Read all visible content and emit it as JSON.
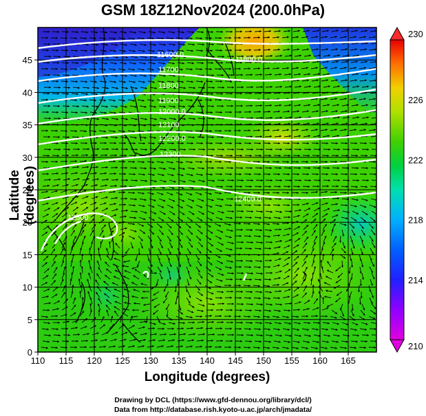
{
  "title": "GSM 18Z12Nov2024 (200.0hPa)",
  "xlabel": "Longitude (degrees)",
  "ylabel": "Latitude  (degrees)",
  "credits": {
    "line1": "Drawing by DCL (https://www.gfd-dennou.org/library/dcl/)",
    "line2": "Data from http://database.rish.kyoto-u.ac.jp/arch/jmadata/"
  },
  "chart_data": {
    "type": "heatmap",
    "title": "GSM 18Z12Nov2024 (200.0hPa)",
    "xlabel": "Longitude (degrees)",
    "ylabel": "Latitude  (degrees)",
    "xlim": [
      110,
      170
    ],
    "ylim": [
      0,
      50
    ],
    "xticks": [
      110,
      115,
      120,
      125,
      130,
      135,
      140,
      145,
      150,
      155,
      160,
      165
    ],
    "yticks": [
      0,
      5,
      10,
      15,
      20,
      25,
      30,
      35,
      40,
      45
    ],
    "grid": true,
    "colorbar": {
      "min": 210,
      "max": 230,
      "ticks": [
        210,
        214,
        218,
        222,
        226,
        230
      ],
      "colors": [
        "#e000e0",
        "#8000ff",
        "#0000ff",
        "#0080ff",
        "#00d0ff",
        "#00e090",
        "#20d000",
        "#80e000",
        "#d0e000",
        "#ffb000",
        "#ff4000",
        "#e00000"
      ]
    },
    "contour_labels": [
      "11600.0",
      "11700",
      "11800",
      "11900",
      "12000.0",
      "12100",
      "12200.0",
      "12300",
      "12400.0",
      "12500",
      "11800.0"
    ],
    "field_samples": [
      {
        "lon": 110,
        "lat": 47,
        "value": 213
      },
      {
        "lon": 120,
        "lat": 45,
        "value": 217
      },
      {
        "lon": 135,
        "lat": 45,
        "value": 221
      },
      {
        "lon": 148,
        "lat": 46,
        "value": 226
      },
      {
        "lon": 160,
        "lat": 45,
        "value": 217
      },
      {
        "lon": 168,
        "lat": 48,
        "value": 214
      },
      {
        "lon": 150,
        "lat": 36,
        "value": 225
      },
      {
        "lon": 120,
        "lat": 30,
        "value": 222
      },
      {
        "lon": 165,
        "lat": 20,
        "value": 219
      },
      {
        "lon": 140,
        "lat": 10,
        "value": 222
      }
    ]
  }
}
